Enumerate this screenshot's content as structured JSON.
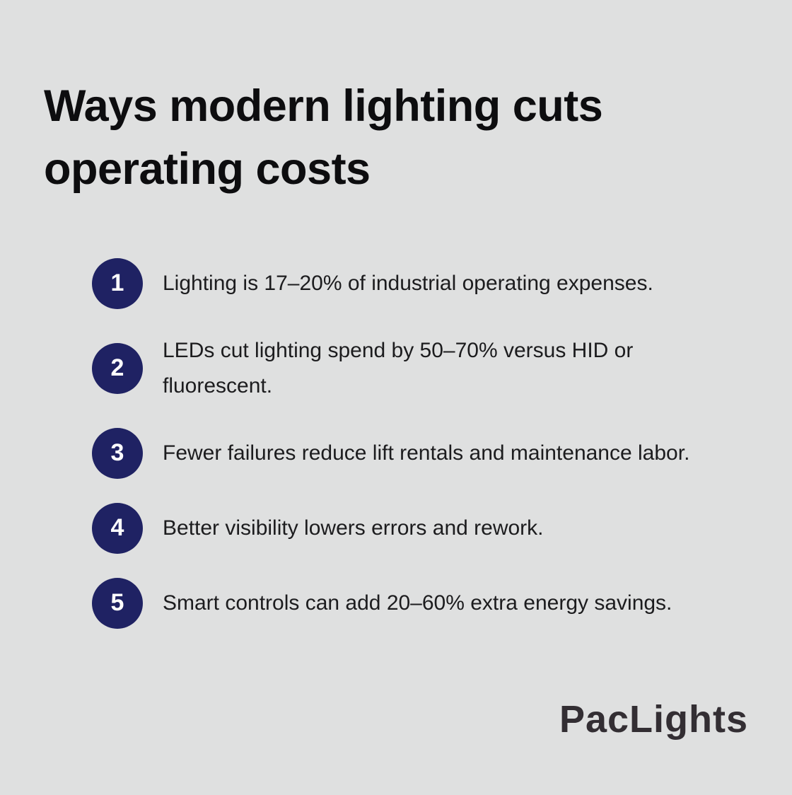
{
  "title": "Ways modern lighting cuts operating costs",
  "items": [
    {
      "number": "1",
      "text": "Lighting is 17–20% of industrial operating expenses."
    },
    {
      "number": "2",
      "text": "LEDs cut lighting spend by 50–70% versus HID or fluorescent."
    },
    {
      "number": "3",
      "text": "Fewer failures reduce lift rentals and maintenance labor."
    },
    {
      "number": "4",
      "text": "Better visibility lowers errors and rework."
    },
    {
      "number": "5",
      "text": "Smart controls can add 20–60% extra energy savings."
    }
  ],
  "logo": {
    "text": "PacLights"
  },
  "theme": {
    "background_color": "#dfe0e0",
    "badge_color": "#1f2263",
    "badge_text_color": "#ffffff",
    "title_color": "#0d0d0f",
    "body_text_color": "#1c1c1e",
    "logo_color": "#332e33"
  }
}
